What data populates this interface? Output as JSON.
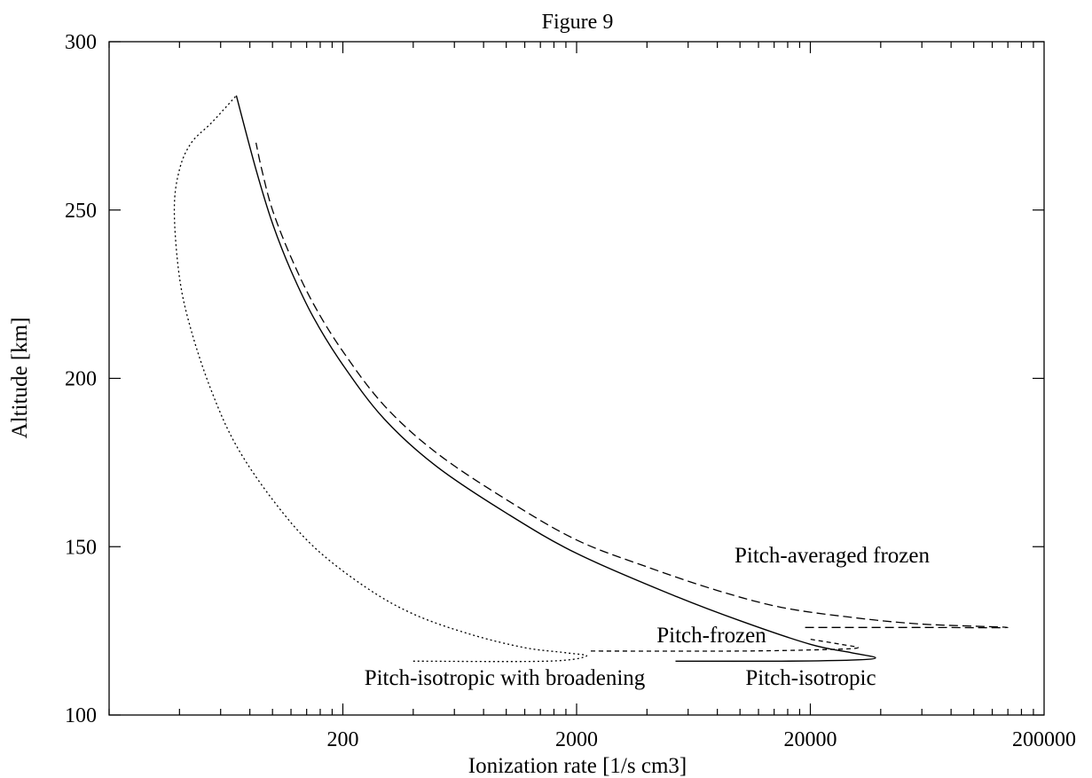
{
  "chart_data": {
    "type": "line",
    "title": "Figure 9",
    "xlabel": "Ionization rate [1/s cm3]",
    "ylabel": "Altitude [km]",
    "xscale": "log",
    "xlim": [
      20,
      200000
    ],
    "ylim": [
      100,
      300
    ],
    "xticks": [
      200,
      2000,
      20000,
      200000
    ],
    "yticks": [
      100,
      150,
      200,
      250,
      300
    ],
    "grid": false,
    "legend": "none",
    "series": [
      {
        "name": "Pitch-isotropic",
        "style": "solid",
        "points": [
          [
            5300,
            116
          ],
          [
            15000,
            116
          ],
          [
            30000,
            116.3
          ],
          [
            38000,
            117
          ],
          [
            30000,
            118.5
          ],
          [
            20000,
            121
          ],
          [
            10000,
            128
          ],
          [
            5000,
            136
          ],
          [
            2000,
            148
          ],
          [
            1000,
            160
          ],
          [
            500,
            174
          ],
          [
            300,
            188
          ],
          [
            200,
            204
          ],
          [
            150,
            218
          ],
          [
            120,
            232
          ],
          [
            100,
            246
          ],
          [
            85,
            262
          ],
          [
            70,
            284
          ]
        ]
      },
      {
        "name": "Pitch-frozen",
        "style": "short-dash",
        "points": [
          [
            2300,
            119
          ],
          [
            10000,
            119
          ],
          [
            25000,
            119.5
          ],
          [
            32000,
            120
          ],
          [
            27000,
            121
          ],
          [
            20000,
            122.5
          ]
        ]
      },
      {
        "name": "Pitch-averaged frozen",
        "style": "long-dash",
        "points": [
          [
            19000,
            126
          ],
          [
            60000,
            126
          ],
          [
            140000,
            126
          ],
          [
            60000,
            127
          ],
          [
            30000,
            129
          ],
          [
            15000,
            132
          ],
          [
            8000,
            137
          ],
          [
            4000,
            144
          ],
          [
            2000,
            152
          ],
          [
            1000,
            164
          ],
          [
            500,
            178
          ],
          [
            300,
            192
          ],
          [
            200,
            208
          ],
          [
            150,
            222
          ],
          [
            120,
            236
          ],
          [
            100,
            250
          ],
          [
            90,
            262
          ],
          [
            85,
            270
          ]
        ]
      },
      {
        "name": "Pitch-isotropic with broadening",
        "style": "dotted",
        "points": [
          [
            400,
            116
          ],
          [
            1500,
            116
          ],
          [
            2200,
            117.5
          ],
          [
            1800,
            118.5
          ],
          [
            1200,
            120
          ],
          [
            700,
            124
          ],
          [
            400,
            130
          ],
          [
            250,
            138
          ],
          [
            150,
            150
          ],
          [
            100,
            164
          ],
          [
            70,
            180
          ],
          [
            55,
            196
          ],
          [
            45,
            214
          ],
          [
            40,
            230
          ],
          [
            38,
            250
          ],
          [
            40,
            262
          ],
          [
            45,
            270
          ],
          [
            55,
            276
          ],
          [
            70,
            284
          ]
        ]
      }
    ],
    "annotations": [
      {
        "text": "Pitch-averaged frozen",
        "series": "Pitch-averaged frozen"
      },
      {
        "text": "Pitch-frozen",
        "series": "Pitch-frozen"
      },
      {
        "text": "Pitch-isotropic with broadening",
        "series": "Pitch-isotropic with broadening"
      },
      {
        "text": "Pitch-isotropic",
        "series": "Pitch-isotropic"
      }
    ]
  }
}
